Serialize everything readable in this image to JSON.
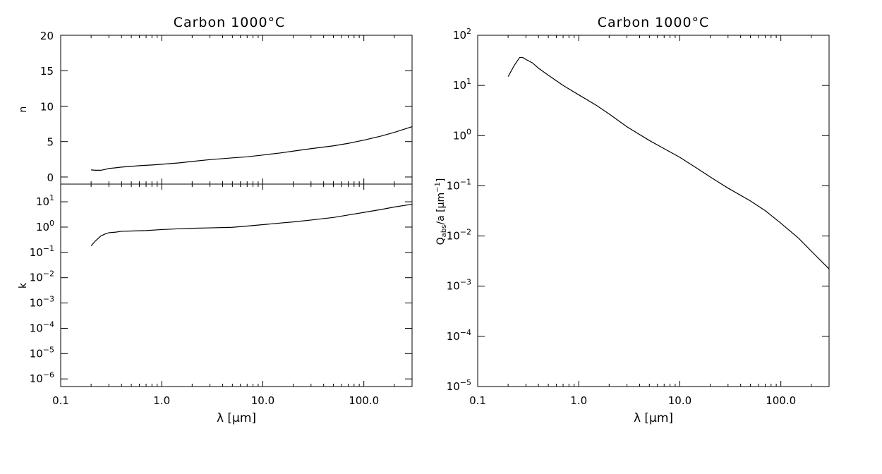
{
  "chart_data": [
    {
      "id": "n",
      "type": "line",
      "title": "Carbon 1000°C",
      "xlabel": "",
      "ylabel": "n",
      "xscale": "log",
      "yscale": "linear",
      "xlim": [
        0.1,
        300
      ],
      "ylim": [
        -1,
        20
      ],
      "xticks": [
        {
          "v": 0.1,
          "label": "0.1"
        },
        {
          "v": 1,
          "label": "1.0"
        },
        {
          "v": 10,
          "label": "10.0"
        },
        {
          "v": 100,
          "label": "100.0"
        }
      ],
      "yticks": [
        {
          "v": 0,
          "label": "0"
        },
        {
          "v": 5,
          "label": "5"
        },
        {
          "v": 10,
          "label": "10"
        },
        {
          "v": 15,
          "label": "15"
        },
        {
          "v": 20,
          "label": "20"
        }
      ],
      "series": [
        {
          "x": [
            0.2,
            0.22,
            0.25,
            0.28,
            0.3,
            0.35,
            0.4,
            0.5,
            0.6,
            0.8,
            1,
            1.5,
            2,
            3,
            5,
            7,
            10,
            15,
            20,
            30,
            50,
            70,
            100,
            150,
            200,
            300
          ],
          "y": [
            1.0,
            0.95,
            0.95,
            1.1,
            1.2,
            1.3,
            1.4,
            1.5,
            1.6,
            1.7,
            1.8,
            2.0,
            2.2,
            2.45,
            2.7,
            2.85,
            3.1,
            3.4,
            3.65,
            4.0,
            4.4,
            4.75,
            5.2,
            5.8,
            6.3,
            7.1
          ]
        }
      ]
    },
    {
      "id": "k",
      "type": "line",
      "title": "",
      "xlabel": "λ [μm]",
      "ylabel": "k",
      "xscale": "log",
      "yscale": "log",
      "xlim": [
        0.1,
        300
      ],
      "ylim": [
        5e-07,
        50
      ],
      "xticks": [
        {
          "v": 0.1,
          "label": "0.1"
        },
        {
          "v": 1,
          "label": "1.0"
        },
        {
          "v": 10,
          "label": "10.0"
        },
        {
          "v": 100,
          "label": "100.0"
        }
      ],
      "yticks": [
        {
          "v": 1e-06,
          "base": "10",
          "exp": "−6"
        },
        {
          "v": 1e-05,
          "base": "10",
          "exp": "−5"
        },
        {
          "v": 0.0001,
          "base": "10",
          "exp": "−4"
        },
        {
          "v": 0.001,
          "base": "10",
          "exp": "−3"
        },
        {
          "v": 0.01,
          "base": "10",
          "exp": "−2"
        },
        {
          "v": 0.1,
          "base": "10",
          "exp": "−1"
        },
        {
          "v": 1,
          "base": "10",
          "exp": "0"
        },
        {
          "v": 10,
          "base": "10",
          "exp": "1"
        }
      ],
      "series": [
        {
          "x": [
            0.2,
            0.22,
            0.25,
            0.28,
            0.3,
            0.35,
            0.4,
            0.5,
            0.7,
            1,
            1.5,
            2,
            3,
            5,
            7,
            10,
            15,
            20,
            30,
            50,
            70,
            100,
            150,
            200,
            300
          ],
          "y": [
            0.18,
            0.28,
            0.45,
            0.55,
            0.6,
            0.63,
            0.68,
            0.7,
            0.73,
            0.8,
            0.86,
            0.9,
            0.93,
            0.98,
            1.1,
            1.25,
            1.45,
            1.6,
            1.9,
            2.4,
            3.0,
            3.8,
            5.0,
            6.2,
            8.0
          ]
        }
      ]
    },
    {
      "id": "qabs",
      "type": "line",
      "title": "Carbon 1000°C",
      "xlabel": "λ [μm]",
      "ylabel": "Q",
      "ylabel_sub": "abs",
      "ylabel_rest": "/a [μm",
      "ylabel_sup": "−1",
      "ylabel_end": "]",
      "xscale": "log",
      "yscale": "log",
      "xlim": [
        0.1,
        300
      ],
      "ylim": [
        1e-05,
        100
      ],
      "xticks": [
        {
          "v": 0.1,
          "label": "0.1"
        },
        {
          "v": 1,
          "label": "1.0"
        },
        {
          "v": 10,
          "label": "10.0"
        },
        {
          "v": 100,
          "label": "100.0"
        }
      ],
      "yticks": [
        {
          "v": 1e-05,
          "base": "10",
          "exp": "−5"
        },
        {
          "v": 0.0001,
          "base": "10",
          "exp": "−4"
        },
        {
          "v": 0.001,
          "base": "10",
          "exp": "−3"
        },
        {
          "v": 0.01,
          "base": "10",
          "exp": "−2"
        },
        {
          "v": 0.1,
          "base": "10",
          "exp": "−1"
        },
        {
          "v": 1,
          "base": "10",
          "exp": "0"
        },
        {
          "v": 10,
          "base": "10",
          "exp": "1"
        },
        {
          "v": 100,
          "base": "10",
          "exp": "2"
        }
      ],
      "series": [
        {
          "x": [
            0.2,
            0.23,
            0.26,
            0.28,
            0.3,
            0.35,
            0.4,
            0.5,
            0.7,
            1,
            1.5,
            2,
            3,
            5,
            7,
            10,
            15,
            20,
            30,
            50,
            70,
            100,
            150,
            200,
            300
          ],
          "y": [
            15,
            25,
            36,
            36,
            33,
            28,
            22,
            16,
            10,
            6.5,
            4.0,
            2.7,
            1.5,
            0.8,
            0.55,
            0.37,
            0.22,
            0.15,
            0.09,
            0.05,
            0.032,
            0.018,
            0.009,
            0.005,
            0.0022
          ]
        }
      ]
    }
  ]
}
